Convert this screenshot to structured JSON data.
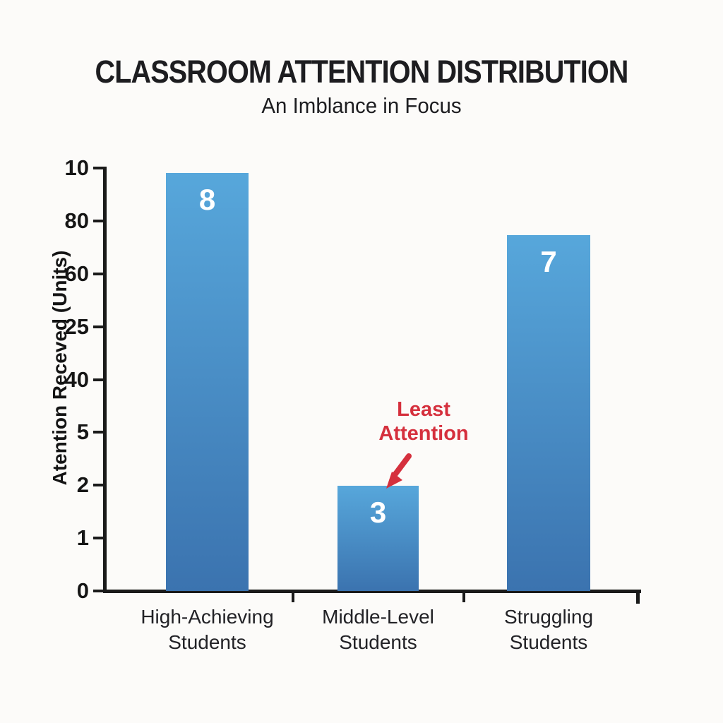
{
  "title": "CLASSROOM ATTENTION DISTRIBUTION",
  "subtitle": "An Imblance in Focus",
  "y_axis_label": "Atention Receved (Units)",
  "annotation": {
    "text": "Least\nAttention"
  },
  "colors": {
    "background": "#fcfbf9",
    "ink": "#1d1d20",
    "axis": "#1a1a1a",
    "bar_gradient_top": "#57a7db",
    "bar_gradient_bottom": "#3b73af",
    "bar_value_text": "#ffffff",
    "annotation_red": "#d5303d"
  },
  "chart_data": {
    "type": "bar",
    "title": "CLASSROOM ATTENTION DISTRIBUTION",
    "subtitle": "An Imblance in Focus",
    "xlabel": "",
    "ylabel": "Atention Receved (Units)",
    "yaxis_tick_labels": [
      "10",
      "80",
      "60",
      "25",
      "40",
      "5",
      "2",
      "1",
      "0"
    ],
    "grid": false,
    "legend": false,
    "categories": [
      "High-Achieving\nStudents",
      "Middle-Level\nStudents",
      "Struggling\nStudents"
    ],
    "bars": [
      {
        "category": "High-Achieving Students",
        "value_label": "8",
        "height_frac": 0.988
      },
      {
        "category": "Middle-Level Students",
        "value_label": "3",
        "height_frac": 0.249
      },
      {
        "category": "Struggling Students",
        "value_label": "7",
        "height_frac": 0.842
      }
    ],
    "annotation": {
      "text": "Least Attention",
      "points_to": "Middle-Level Students"
    }
  }
}
